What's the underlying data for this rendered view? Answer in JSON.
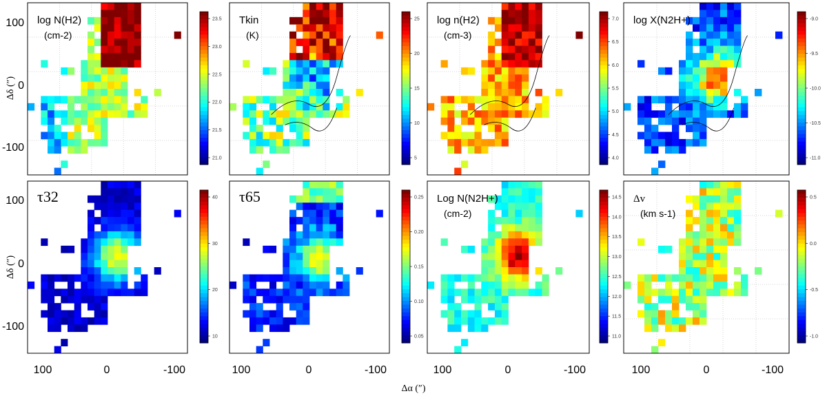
{
  "figure": {
    "xaxis_label": "Δα (″)",
    "yaxis_label": "Δδ (″)",
    "x_ticks": [
      "100",
      "0",
      "-100"
    ],
    "y_ticks": [
      "100",
      "0",
      "-100"
    ]
  },
  "chart_data": [
    {
      "type": "heatmap",
      "label_main": "log N(H2)",
      "label_unit": "(cm-2)",
      "cbar_ticks": [
        "23.5",
        "23.0",
        "22.5",
        "22.0",
        "21.5",
        "21.0"
      ],
      "vmin": 20.9,
      "vmax": 23.7,
      "grid": true
    },
    {
      "type": "heatmap",
      "label_main": "Tkin",
      "label_unit": "(K)",
      "cbar_ticks": [
        "25",
        "20",
        "15",
        "10",
        "5"
      ],
      "vmin": 3,
      "vmax": 26,
      "grid": true,
      "contours": true
    },
    {
      "type": "heatmap",
      "label_main": "log n(H2)",
      "label_unit": "(cm-3)",
      "cbar_ticks": [
        "7.0",
        "6.5",
        "6.0",
        "5.5",
        "5.0",
        "4.5",
        "4.0"
      ],
      "vmin": 4.0,
      "vmax": 7.0,
      "grid": true,
      "contours": true
    },
    {
      "type": "heatmap",
      "label_main": "log X(N2H+)",
      "label_unit": "",
      "cbar_ticks": [
        "-9.0",
        "-9.5",
        "-10.0",
        "-10.5",
        "-11.0"
      ],
      "vmin": -11.1,
      "vmax": -8.8,
      "grid": true,
      "contours": true
    },
    {
      "type": "heatmap",
      "label_main": "τ32",
      "label_unit": "",
      "cbar_ticks": [
        "40",
        "30",
        "20",
        "10"
      ],
      "vmin": 2,
      "vmax": 48,
      "grid": false
    },
    {
      "type": "heatmap",
      "label_main": "τ65",
      "label_unit": "",
      "cbar_ticks": [
        "0.25",
        "0.20",
        "0.15",
        "0.10",
        "0.05"
      ],
      "vmin": 0.0,
      "vmax": 0.3,
      "grid": false
    },
    {
      "type": "heatmap",
      "label_main": "Log N(N2H+)",
      "label_unit": "(cm-2)",
      "cbar_ticks": [
        "14.5",
        "14.0",
        "13.5",
        "13.0",
        "12.5",
        "12.0",
        "11.5",
        "11.0"
      ],
      "vmin": 10.9,
      "vmax": 14.6,
      "grid": false
    },
    {
      "type": "heatmap",
      "label_main": "Δv",
      "label_unit": "(km s-1)",
      "cbar_ticks": [
        "0.5",
        "0.0",
        "-0.5",
        "-1.0"
      ],
      "vmin": -1.1,
      "vmax": 0.9,
      "grid": true
    }
  ]
}
